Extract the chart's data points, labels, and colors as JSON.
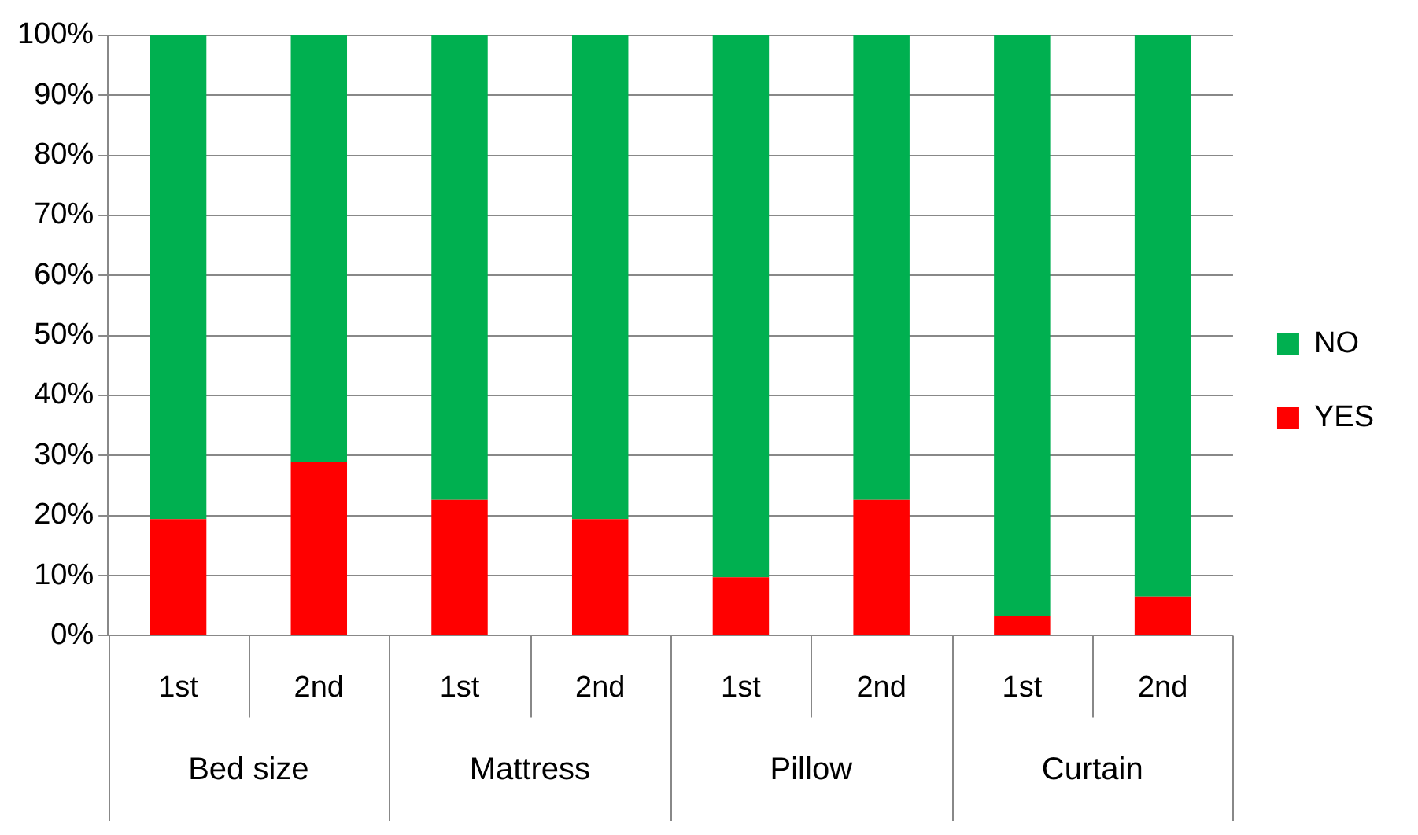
{
  "chart_data": {
    "type": "bar",
    "stacked": true,
    "categories": [
      "1st",
      "2nd",
      "1st",
      "2nd",
      "1st",
      "2nd",
      "1st",
      "2nd"
    ],
    "annotations": [
      "Bed size",
      "Mattress",
      "Pillow",
      "Curtain"
    ],
    "series": [
      {
        "name": "YES",
        "color": "#ff0000",
        "values": [
          19.4,
          29,
          22.6,
          19.4,
          9.7,
          22.6,
          3.2,
          6.5
        ]
      },
      {
        "name": "NO",
        "color": "#00b050",
        "values": [
          80.6,
          71,
          77.4,
          80.6,
          90.3,
          77.4,
          96.8,
          93.5
        ]
      }
    ],
    "ylim": [
      0,
      100
    ],
    "yticks": [
      {
        "value": 0,
        "label": "0%"
      },
      {
        "value": 10,
        "label": "10%"
      },
      {
        "value": 20,
        "label": "20%"
      },
      {
        "value": 30,
        "label": "30%"
      },
      {
        "value": 40,
        "label": "40%"
      },
      {
        "value": 50,
        "label": "50%"
      },
      {
        "value": 60,
        "label": "60%"
      },
      {
        "value": 70,
        "label": "70%"
      },
      {
        "value": 80,
        "label": "80%"
      },
      {
        "value": 90,
        "label": "90%"
      },
      {
        "value": 100,
        "label": "100%"
      }
    ],
    "grid": "y",
    "legend": "right"
  }
}
